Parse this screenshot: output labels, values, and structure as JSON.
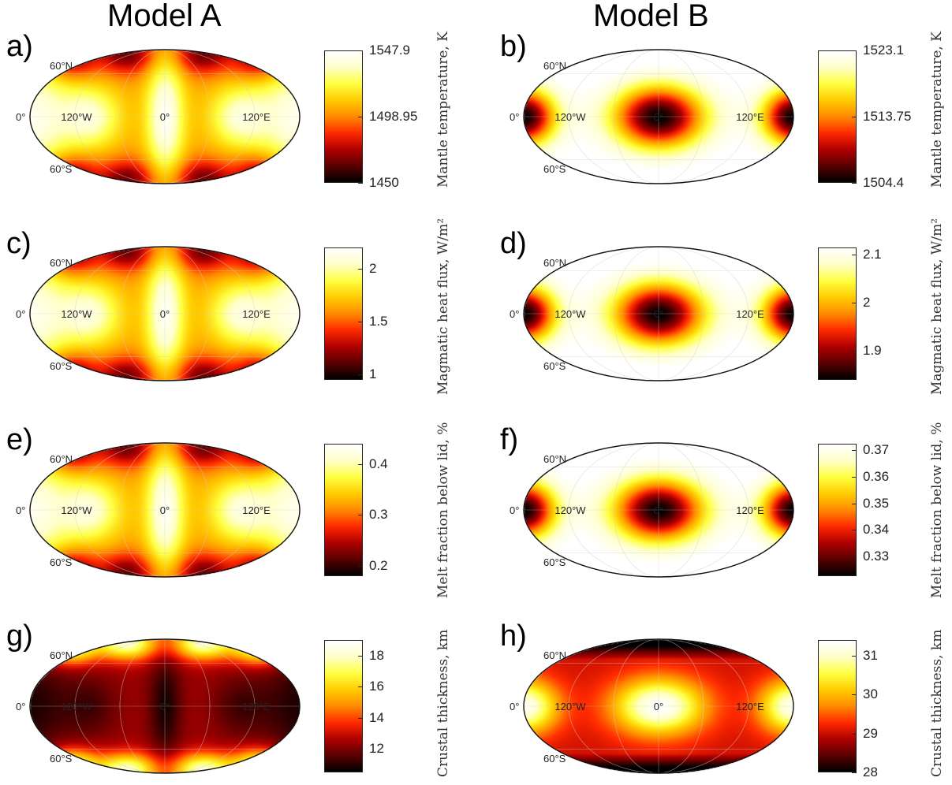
{
  "columns": {
    "left_title": "Model A",
    "right_title": "Model B"
  },
  "geo_labels": {
    "lat_north": "60°N",
    "equator": "0°",
    "lat_south": "60°S",
    "lon_west": "120°W",
    "meridian": "0°",
    "lon_east": "120°E"
  },
  "colormap": [
    "#000000",
    "#5a0000",
    "#b00000",
    "#ff2a00",
    "#ff8a00",
    "#ffcc00",
    "#ffff40",
    "#ffffc8",
    "#ffffff"
  ],
  "panels": [
    {
      "letter": "a)",
      "model": "A",
      "pattern": "A",
      "colorbar": {
        "label": "Mantle temperature, K",
        "min": 1450,
        "max": 1547.9,
        "ticks": [
          "1547.9",
          "1498.95",
          "1450"
        ]
      }
    },
    {
      "letter": "b)",
      "model": "B",
      "pattern": "B",
      "colorbar": {
        "label": "Mantle temperature, K",
        "min": 1504.4,
        "max": 1523.1,
        "ticks": [
          "1523.1",
          "1513.75",
          "1504.4"
        ]
      }
    },
    {
      "letter": "c)",
      "model": "A",
      "pattern": "A",
      "colorbar": {
        "label": "Magmatic heat flux, W/m²",
        "min": 0.95,
        "max": 2.2,
        "ticks": [
          "2",
          "1.5",
          "1"
        ]
      }
    },
    {
      "letter": "d)",
      "model": "B",
      "pattern": "B",
      "colorbar": {
        "label": "Magmatic heat flux, W/m²",
        "min": 1.84,
        "max": 2.115,
        "ticks": [
          "2.1",
          "2",
          "1.9"
        ]
      }
    },
    {
      "letter": "e)",
      "model": "A",
      "pattern": "A",
      "colorbar": {
        "label": "Melt fraction below lid, %",
        "min": 0.18,
        "max": 0.44,
        "ticks": [
          "0.4",
          "0.3",
          "0.2"
        ]
      }
    },
    {
      "letter": "f)",
      "model": "B",
      "pattern": "B",
      "colorbar": {
        "label": "Melt fraction below lid, %",
        "min": 0.3225,
        "max": 0.3725,
        "ticks": [
          "0.37",
          "0.36",
          "0.35",
          "0.34",
          "0.33"
        ]
      }
    },
    {
      "letter": "g)",
      "model": "A",
      "pattern": "G",
      "colorbar": {
        "label": "Crustal thickness, km",
        "min": 10.5,
        "max": 19,
        "ticks": [
          "18",
          "16",
          "14",
          "12"
        ]
      }
    },
    {
      "letter": "h)",
      "model": "B",
      "pattern": "H",
      "colorbar": {
        "label": "Crustal thickness, km",
        "min": 28,
        "max": 31.4,
        "ticks": [
          "31",
          "30",
          "29",
          "28"
        ]
      }
    }
  ]
}
